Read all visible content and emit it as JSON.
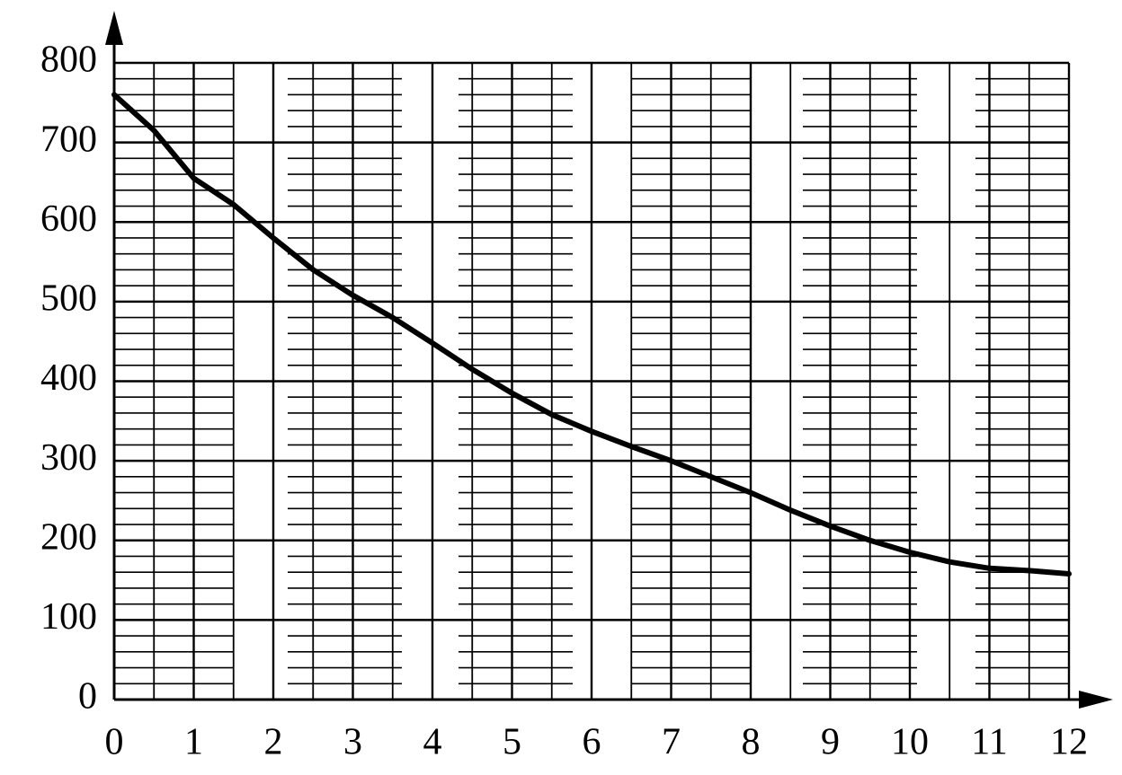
{
  "chart_data": {
    "type": "line",
    "x": [
      0,
      0.5,
      1,
      1.5,
      2,
      2.5,
      3,
      3.5,
      4,
      4.5,
      5,
      5.5,
      6,
      6.5,
      7,
      7.5,
      8,
      8.5,
      9,
      9.5,
      10,
      10.5,
      11,
      11.5,
      12
    ],
    "values": [
      760,
      715,
      655,
      622,
      580,
      540,
      508,
      480,
      448,
      415,
      385,
      358,
      337,
      318,
      300,
      280,
      260,
      238,
      218,
      200,
      185,
      173,
      165,
      162,
      158
    ],
    "color": "#000000",
    "xlim": [
      0,
      12
    ],
    "xticks": [
      0,
      1,
      2,
      3,
      4,
      5,
      6,
      7,
      8,
      9,
      10,
      11,
      12
    ],
    "ylim": [
      0,
      800
    ],
    "yticks": [
      0,
      100,
      200,
      300,
      400,
      500,
      600,
      700,
      800
    ],
    "grid": true
  }
}
